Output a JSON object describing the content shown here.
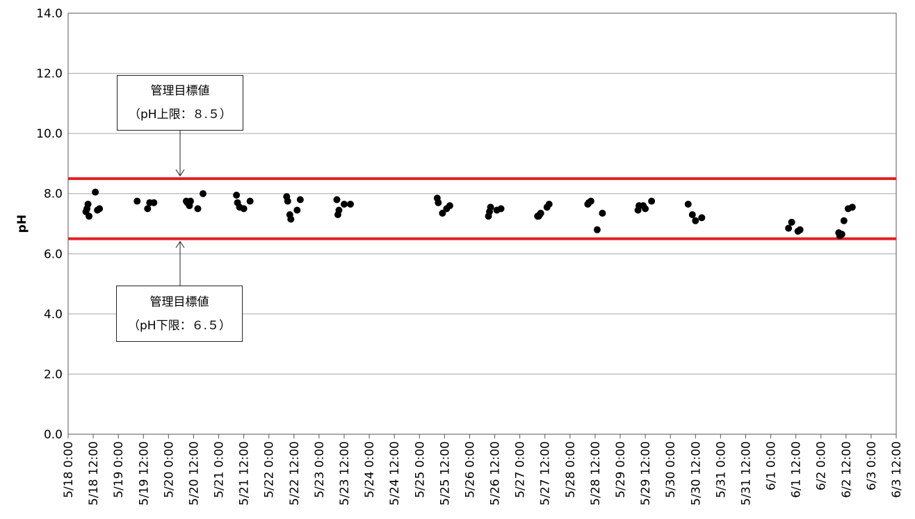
{
  "chart_data": {
    "type": "scatter",
    "xlabel": "",
    "ylabel": "pH",
    "ylim": [
      0,
      14
    ],
    "y_ticks": [
      "0.0",
      "2.0",
      "4.0",
      "6.0",
      "8.0",
      "10.0",
      "12.0",
      "14.0"
    ],
    "x_ticks": [
      "5/18 0:00",
      "5/18 12:00",
      "5/19 0:00",
      "5/19 12:00",
      "5/20 0:00",
      "5/20 12:00",
      "5/21 0:00",
      "5/21 12:00",
      "5/22 0:00",
      "5/22 12:00",
      "5/23 0:00",
      "5/23 12:00",
      "5/24 0:00",
      "5/24 12:00",
      "5/25 0:00",
      "5/25 12:00",
      "5/26 0:00",
      "5/26 12:00",
      "5/27 0:00",
      "5/27 12:00",
      "5/28 0:00",
      "5/28 12:00",
      "5/29 0:00",
      "5/29 12:00",
      "5/30 0:00",
      "5/30 12:00",
      "5/31 0:00",
      "5/31 12:00",
      "6/1 0:00",
      "6/1 12:00",
      "6/2 0:00",
      "6/2 12:00",
      "6/3 0:00",
      "6/3 12:00"
    ],
    "xlim": [
      "5/18 0:00",
      "6/3 12:00"
    ],
    "grid": "horizontal",
    "reference_lines": [
      {
        "value": 8.5,
        "color": "#e31e24"
      },
      {
        "value": 6.5,
        "color": "#e31e24"
      }
    ],
    "point_color": "#000000",
    "series": [
      {
        "x": [
          "5/18 8:30",
          "5/18 9:00",
          "5/18 9:30",
          "5/18 10:00",
          "5/18 13:00",
          "5/18 14:00",
          "5/18 15:00",
          "5/19 9:00",
          "5/19 14:00",
          "5/19 15:00",
          "5/19 17:00",
          "5/20 8:30",
          "5/20 9:00",
          "5/20 10:00",
          "5/20 10:30",
          "5/20 14:00",
          "5/20 16:30",
          "5/21 8:30",
          "5/21 9:00",
          "5/21 10:00",
          "5/21 12:00",
          "5/21 15:00",
          "5/22 8:30",
          "5/22 9:00",
          "5/22 10:00",
          "5/22 10:30",
          "5/22 13:30",
          "5/22 15:00",
          "5/23 8:30",
          "5/23 9:00",
          "5/23 9:30",
          "5/23 12:00",
          "5/23 15:00",
          "5/25 8:30",
          "5/25 9:00",
          "5/25 11:00",
          "5/25 13:00",
          "5/25 14:30",
          "5/26 9:00",
          "5/26 9:30",
          "5/26 10:00",
          "5/26 13:00",
          "5/26 15:00",
          "5/27 8:30",
          "5/27 9:00",
          "5/27 9:30",
          "5/27 10:00",
          "5/27 13:00",
          "5/27 14:00",
          "5/28 8:30",
          "5/28 9:00",
          "5/28 10:00",
          "5/28 13:00",
          "5/28 15:30",
          "5/29 8:30",
          "5/29 9:00",
          "5/29 11:00",
          "5/29 12:00",
          "5/29 15:00",
          "5/30 8:30",
          "5/30 10:30",
          "5/30 12:00",
          "5/30 15:00",
          "6/1 8:30",
          "6/1 10:00",
          "6/1 13:00",
          "6/1 14:00",
          "6/2 8:30",
          "6/2 9:00",
          "6/2 10:00",
          "6/2 11:00",
          "6/2 13:00",
          "6/2 15:00"
        ],
        "y": [
          7.4,
          7.5,
          7.65,
          7.25,
          8.05,
          7.45,
          7.5,
          7.75,
          7.5,
          7.7,
          7.7,
          7.75,
          7.7,
          7.6,
          7.75,
          7.5,
          8.0,
          7.95,
          7.7,
          7.55,
          7.5,
          7.75,
          7.9,
          7.75,
          7.3,
          7.15,
          7.45,
          7.8,
          7.8,
          7.3,
          7.45,
          7.65,
          7.65,
          7.85,
          7.7,
          7.35,
          7.5,
          7.6,
          7.25,
          7.4,
          7.55,
          7.45,
          7.5,
          7.25,
          7.25,
          7.3,
          7.35,
          7.55,
          7.65,
          7.65,
          7.7,
          7.75,
          6.8,
          7.35,
          7.45,
          7.6,
          7.6,
          7.5,
          7.75,
          7.65,
          7.3,
          7.1,
          7.2,
          6.85,
          7.05,
          6.75,
          6.8,
          6.7,
          6.6,
          6.65,
          7.1,
          7.5,
          7.55
        ]
      }
    ],
    "annotations": [
      {
        "line1": "管理目標値",
        "line2": "（pH上限：８.５）",
        "target": 8.5
      },
      {
        "line1": "管理目標値",
        "line2": "（pH下限：６.５）",
        "target": 6.5
      }
    ]
  }
}
